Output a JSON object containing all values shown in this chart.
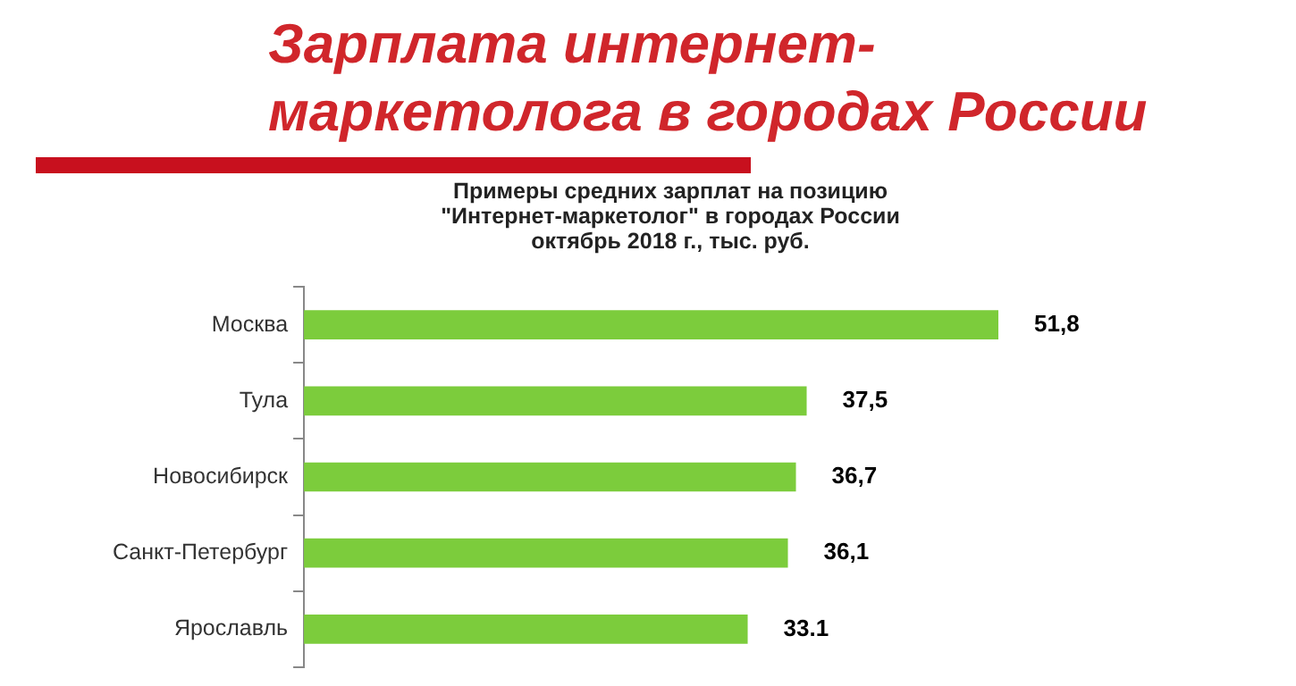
{
  "chart_data": {
    "type": "bar",
    "orientation": "horizontal",
    "title": "Зарплата интернет-маркетолога в городах России",
    "subtitle": "Примеры средних зарплат на позицию\n\"Интернет-маркетолог\" в городах России\nоктябрь 2018 г., тыс. руб.",
    "categories": [
      "Москва",
      "Тула",
      "Новосибирск",
      "Санкт-Петербург",
      "Ярославль"
    ],
    "values": [
      51.8,
      37.5,
      36.7,
      36.1,
      33.1
    ],
    "value_labels": [
      "51,8",
      "37,5",
      "36,7",
      "36,1",
      "33.1"
    ],
    "color": "#7ccc3c",
    "grid": false,
    "legend": false
  }
}
